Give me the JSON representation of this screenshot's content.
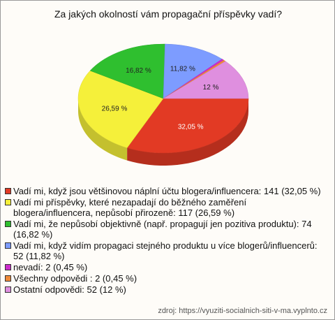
{
  "chart_data": {
    "type": "pie",
    "title": "Za jakých okolností vám propagační příspěvky vadí?",
    "categories": [
      "Vadí mi, když jsou většinovou náplní účtu blogera/influencera: 141 (32,05 %)",
      "Vadí mi příspěvky, které nezapadají do běžného zaměření blogera/influencera, nepůsobí přirozeně: 117 (26,59 %)",
      "Vadí mi, že nepůsobí objektivně (např. propagují jen pozitiva produktu): 74 (16,82 %)",
      "Vadí mi, když vidím propagaci stejného produktu u více blogerů/influencerů: 52 (11,82 %)",
      "nevadí: 2 (0,45 %)",
      "Všechny odpovědi : 2 (0,45 %)",
      "Ostatní odpovědi: 52 (12 %)"
    ],
    "values": [
      32.05,
      26.59,
      16.82,
      11.82,
      0.45,
      0.45,
      12
    ],
    "value_labels": [
      "32,05 %",
      "26,59 %",
      "16,82 %",
      "11,82 %",
      null,
      null,
      "12 %"
    ],
    "colors": [
      "#e23a24",
      "#f5f03a",
      "#2fbf2f",
      "#7d9cff",
      "#cc2ccc",
      "#ee8a3a",
      "#df8fdf"
    ],
    "source": "zdroj: https://vyuziti-socialnich-siti-v-ma.vyplnto.cz"
  }
}
